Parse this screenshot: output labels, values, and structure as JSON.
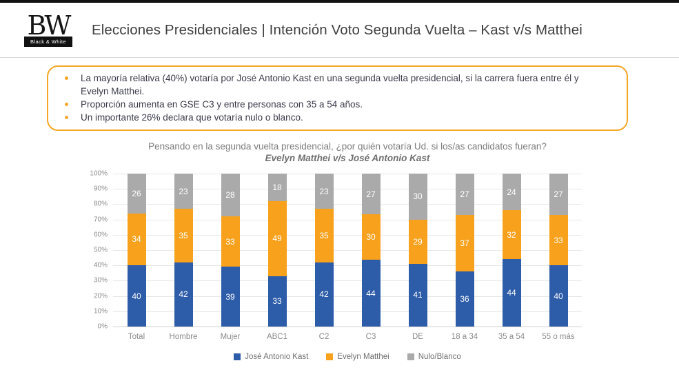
{
  "header": {
    "logo": {
      "initials": "BW",
      "name": "Black & White"
    },
    "title": "Elecciones Presidenciales | Intención Voto Segunda Vuelta – Kast v/s Matthei"
  },
  "summary_box": {
    "bullets": [
      "La mayoría relativa (40%) votaría por José Antonio Kast en una segunda vuelta presidencial, si la carrera fuera entre él y Evelyn Matthei.",
      "Proporción aumenta en GSE C3 y entre personas con 35 a 54 años.",
      "Un importante 26% declara que votaría nulo o blanco."
    ]
  },
  "chart_data": {
    "type": "bar",
    "stacked": true,
    "title": "Pensando en la segunda vuelta presidencial, ¿por quién votaría Ud. si los/as candidatos fueran?",
    "subtitle": "Evelyn Matthei v/s José Antonio Kast",
    "categories": [
      "Total",
      "Hombre",
      "Mujer",
      "ABC1",
      "C2",
      "C3",
      "DE",
      "18 a 34",
      "35 a 54",
      "55 o más"
    ],
    "series": [
      {
        "name": "José Antonio Kast",
        "color": "#2D5CA8",
        "values": [
          40,
          42,
          39,
          33,
          42,
          44,
          41,
          36,
          44,
          40
        ]
      },
      {
        "name": "Evelyn Matthei",
        "color": "#F7A11C",
        "values": [
          34,
          35,
          33,
          49,
          35,
          30,
          29,
          37,
          32,
          33
        ]
      },
      {
        "name": "Nulo/Blanco",
        "color": "#AAAAAA",
        "values": [
          26,
          23,
          28,
          18,
          23,
          27,
          30,
          27,
          24,
          27
        ]
      }
    ],
    "y_axis": {
      "min": 0,
      "max": 100,
      "ticks": [
        "100%",
        "90%",
        "80%",
        "70%",
        "60%",
        "50%",
        "40%",
        "30%",
        "20%",
        "10%",
        "0%"
      ],
      "grid": true
    },
    "legend_position": "bottom",
    "value_labels": "inside-white"
  },
  "colors": {
    "accent_orange": "#F5A623",
    "kast_blue": "#2D5CA8",
    "matthei_orange": "#F7A11C",
    "nulo_gray": "#AAAAAA",
    "top_bar": "#111111"
  }
}
